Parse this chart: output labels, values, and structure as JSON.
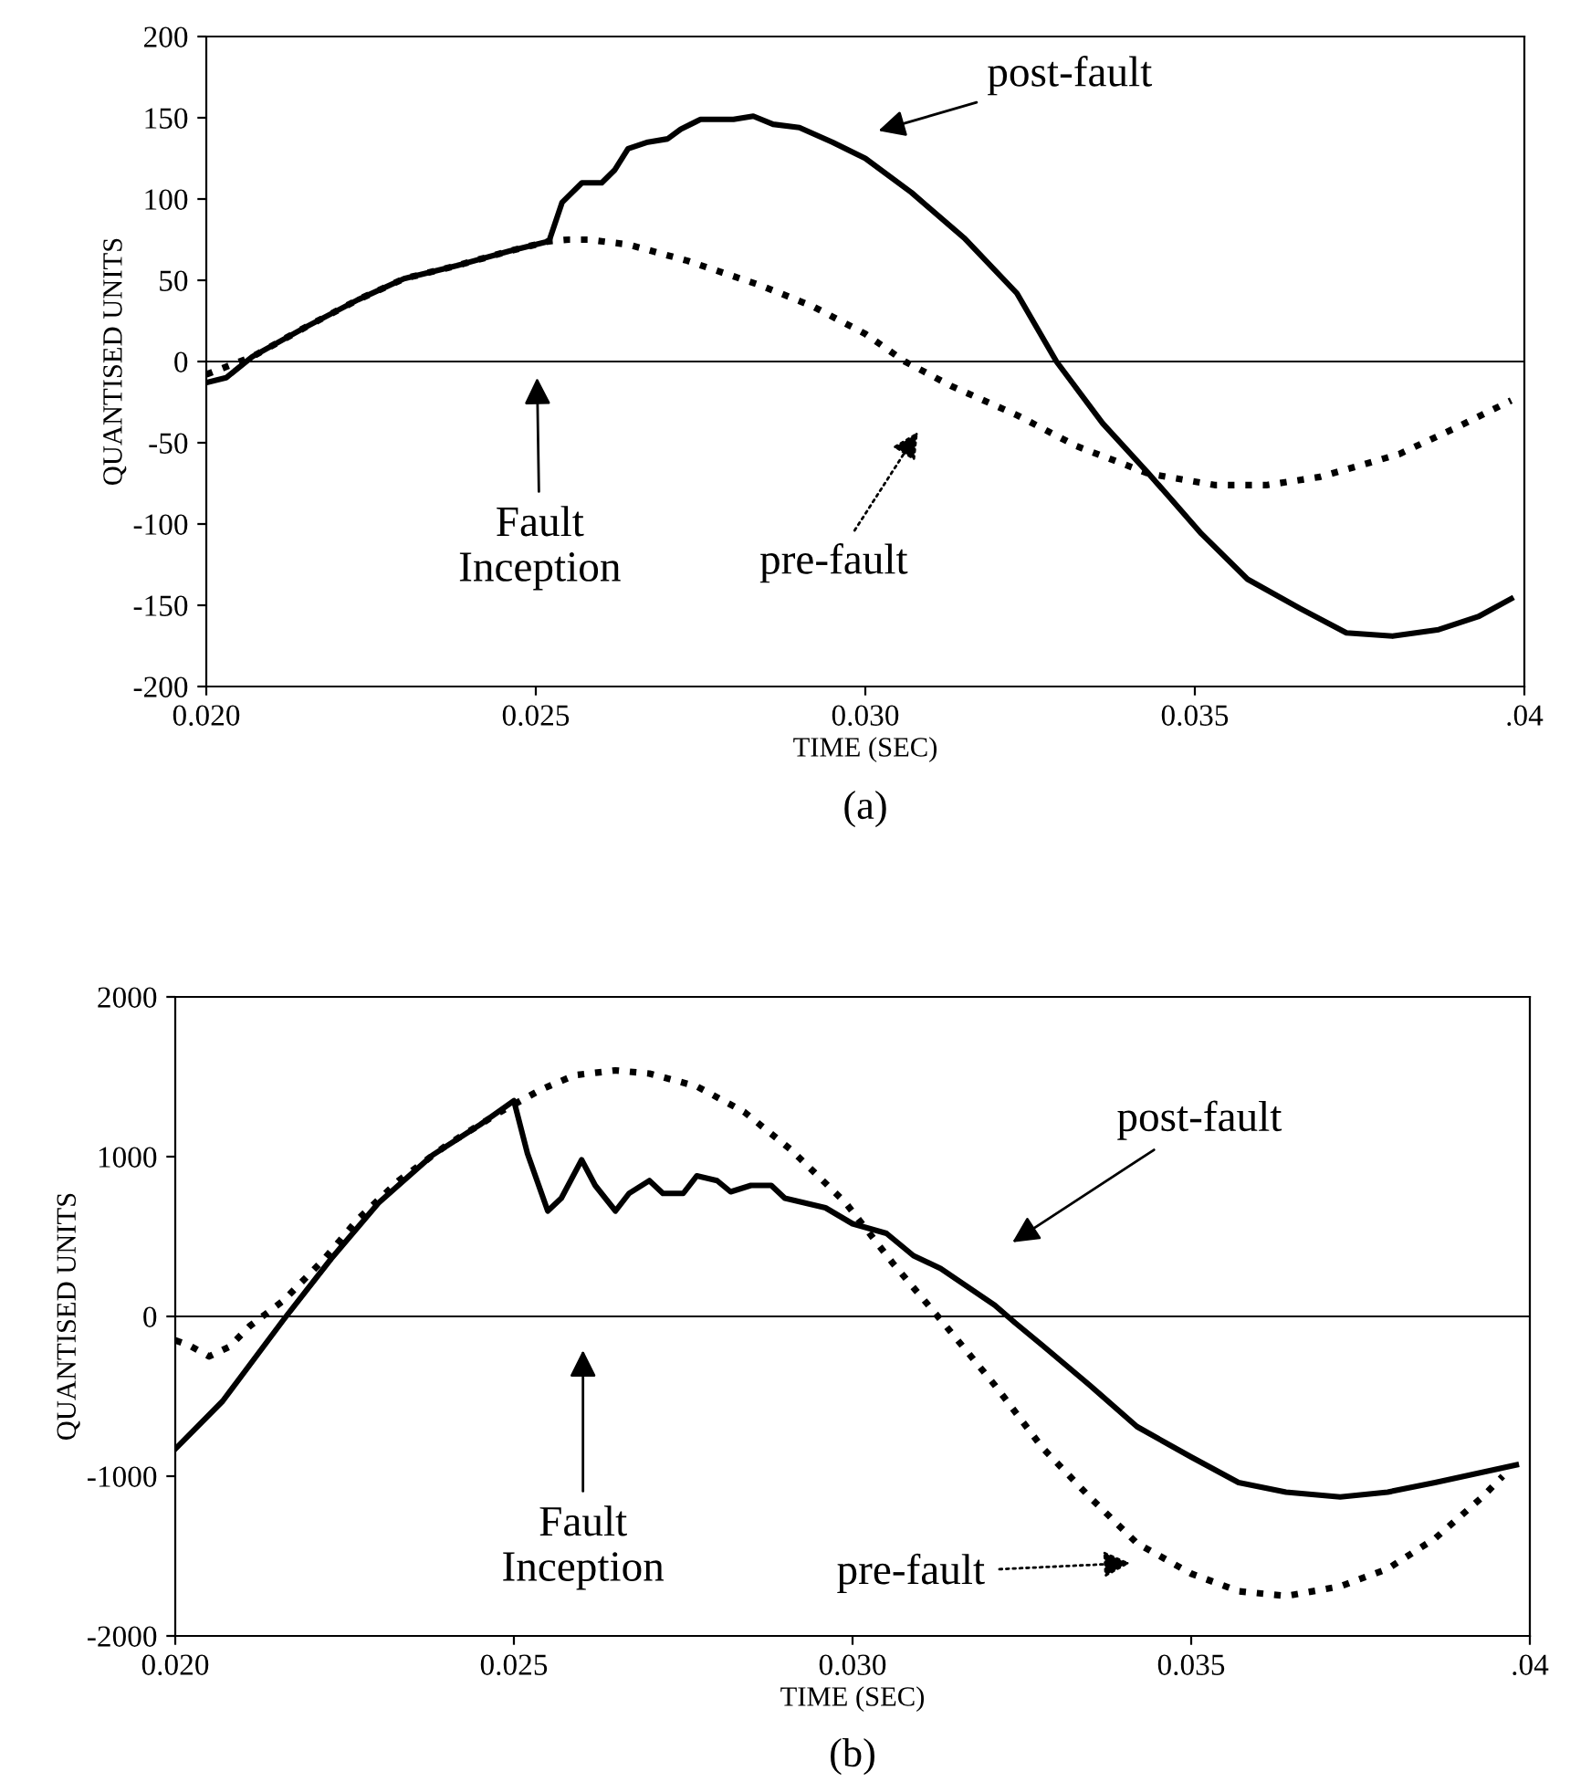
{
  "chart_data": [
    {
      "type": "line",
      "title": "(a)",
      "xlabel": "TIME (SEC)",
      "ylabel": "QUANTISED UNITS",
      "xlim": [
        0.02,
        0.04
      ],
      "ylim": [
        -200,
        200
      ],
      "xticks": [
        {
          "value": 0.02,
          "label": "0.020"
        },
        {
          "value": 0.025,
          "label": "0.025"
        },
        {
          "value": 0.03,
          "label": "0.030"
        },
        {
          "value": 0.035,
          "label": "0.035"
        },
        {
          "value": 0.04,
          "label": ".04"
        }
      ],
      "yticks": [
        -200,
        -150,
        -100,
        -50,
        0,
        50,
        100,
        150,
        200
      ],
      "grid": false,
      "legend": false,
      "marker": "none",
      "ref_lines": [
        {
          "axis": "y",
          "value": 0,
          "color": "#000000",
          "line_style": "solid"
        }
      ],
      "series": [
        {
          "color": "#000000",
          "line_style": "solid",
          "x": [
            0.02,
            0.0203,
            0.0207,
            0.0215,
            0.0223,
            0.023,
            0.0238,
            0.0246,
            0.0252,
            0.0254,
            0.0257,
            0.026,
            0.0262,
            0.0264,
            0.0267,
            0.027,
            0.0272,
            0.0275,
            0.028,
            0.0283,
            0.0286,
            0.029,
            0.0295,
            0.03,
            0.0307,
            0.0315,
            0.0323,
            0.0329,
            0.0336,
            0.0343,
            0.0351,
            0.0358,
            0.0366,
            0.0373,
            0.038,
            0.0387,
            0.0393,
            0.0398
          ],
          "values": [
            -13,
            -10,
            3,
            21,
            38,
            51,
            59,
            68,
            74,
            98,
            110,
            110,
            118,
            131,
            135,
            137,
            143,
            149,
            149,
            151,
            146,
            144,
            135,
            125,
            104,
            76,
            42,
            0,
            -38,
            -69,
            -106,
            -134,
            -152,
            -167,
            -169,
            -165,
            -157,
            -146
          ]
        },
        {
          "color": "#000000",
          "line_style": "dotted",
          "x": [
            0.02,
            0.0207,
            0.0215,
            0.0223,
            0.023,
            0.0238,
            0.0246,
            0.0252,
            0.0255,
            0.0258,
            0.0264,
            0.0273,
            0.0284,
            0.0292,
            0.03,
            0.0306,
            0.0313,
            0.0323,
            0.0332,
            0.0343,
            0.0353,
            0.0361,
            0.0369,
            0.0381,
            0.039,
            0.0398
          ],
          "values": [
            -8,
            3,
            21,
            38,
            51,
            59,
            68,
            74,
            75,
            75,
            72,
            62,
            47,
            34,
            17,
            0,
            -15,
            -33,
            -52,
            -69,
            -76,
            -76,
            -71,
            -57,
            -40,
            -24
          ]
        }
      ],
      "annotations": [
        "post-fault",
        "pre-fault",
        "Fault\nInception"
      ]
    },
    {
      "type": "line",
      "title": "(b)",
      "xlabel": "TIME (SEC)",
      "ylabel": "QUANTISED UNITS",
      "xlim": [
        0.02,
        0.04
      ],
      "ylim": [
        -2000,
        2000
      ],
      "xticks": [
        {
          "value": 0.02,
          "label": "0.020"
        },
        {
          "value": 0.025,
          "label": "0.025"
        },
        {
          "value": 0.03,
          "label": "0.030"
        },
        {
          "value": 0.035,
          "label": "0.035"
        },
        {
          "value": 0.04,
          "label": ".04"
        }
      ],
      "yticks": [
        -2000,
        -1000,
        0,
        1000,
        2000
      ],
      "grid": false,
      "legend": false,
      "marker": "none",
      "ref_lines": [
        {
          "axis": "y",
          "value": 0,
          "color": "#000000",
          "line_style": "solid"
        }
      ],
      "series": [
        {
          "color": "#000000",
          "line_style": "solid",
          "x": [
            0.02,
            0.0207,
            0.0216,
            0.0223,
            0.023,
            0.0238,
            0.0245,
            0.025,
            0.0252,
            0.0255,
            0.0257,
            0.026,
            0.0262,
            0.0265,
            0.0267,
            0.027,
            0.0272,
            0.0275,
            0.0277,
            0.028,
            0.0282,
            0.0285,
            0.0288,
            0.029,
            0.0296,
            0.03,
            0.0305,
            0.0309,
            0.0313,
            0.0321,
            0.0324,
            0.0328,
            0.0335,
            0.0342,
            0.035,
            0.0357,
            0.0364,
            0.0372,
            0.0379,
            0.0386,
            0.0398
          ],
          "values": [
            -830,
            -530,
            -20,
            360,
            710,
            1010,
            1200,
            1350,
            1020,
            660,
            740,
            980,
            820,
            660,
            770,
            850,
            770,
            770,
            880,
            850,
            780,
            820,
            820,
            740,
            680,
            580,
            520,
            380,
            300,
            70,
            -40,
            -180,
            -430,
            -690,
            -880,
            -1040,
            -1100,
            -1130,
            -1100,
            -1040,
            -930
          ]
        },
        {
          "color": "#000000",
          "line_style": "dotted",
          "x": [
            0.02,
            0.0202,
            0.0205,
            0.0208,
            0.0211,
            0.0216,
            0.0222,
            0.0227,
            0.0233,
            0.024,
            0.0248,
            0.0254,
            0.0259,
            0.0265,
            0.027,
            0.0277,
            0.0284,
            0.0291,
            0.0299,
            0.0306,
            0.0313,
            0.0321,
            0.0328,
            0.0335,
            0.0342,
            0.035,
            0.0357,
            0.0364,
            0.0372,
            0.0379,
            0.0386,
            0.0393,
            0.0396
          ],
          "values": [
            -150,
            -180,
            -250,
            -190,
            -60,
            100,
            360,
            610,
            850,
            1070,
            1280,
            1420,
            1510,
            1540,
            1520,
            1440,
            1280,
            1040,
            710,
            330,
            -20,
            -430,
            -820,
            -1130,
            -1420,
            -1610,
            -1720,
            -1750,
            -1690,
            -1580,
            -1390,
            -1130,
            -1000
          ]
        }
      ],
      "annotations": [
        "post-fault",
        "pre-fault",
        "Fault\nInception"
      ]
    }
  ]
}
